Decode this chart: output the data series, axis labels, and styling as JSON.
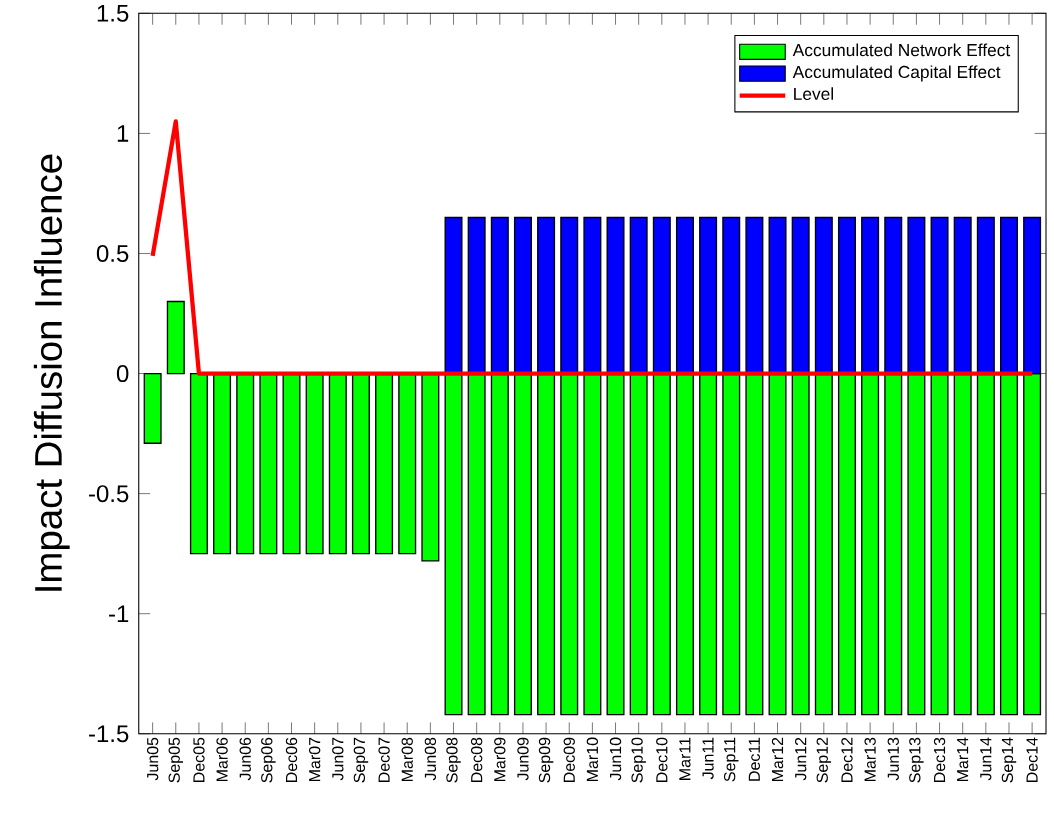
{
  "chart_data": {
    "type": "bar",
    "ylabel": "Impact Diffusion Influence",
    "categories": [
      "Jun05",
      "Sep05",
      "Dec05",
      "Mar06",
      "Jun06",
      "Sep06",
      "Dec06",
      "Mar07",
      "Jun07",
      "Sep07",
      "Dec07",
      "Mar08",
      "Jun08",
      "Sep08",
      "Dec08",
      "Mar09",
      "Jun09",
      "Sep09",
      "Dec09",
      "Mar10",
      "Jun10",
      "Sep10",
      "Dec10",
      "Mar11",
      "Jun11",
      "Sep11",
      "Dec11",
      "Mar12",
      "Jun12",
      "Sep12",
      "Dec12",
      "Mar13",
      "Jun13",
      "Sep13",
      "Dec13",
      "Mar14",
      "Jun14",
      "Sep14",
      "Dec14"
    ],
    "series": [
      {
        "name": "Accumulated Network Effect",
        "color": "#00ff00",
        "values": [
          -0.29,
          0.3,
          -0.75,
          -0.75,
          -0.75,
          -0.75,
          -0.75,
          -0.75,
          -0.75,
          -0.75,
          -0.75,
          -0.75,
          -0.78,
          -1.42,
          -1.42,
          -1.42,
          -1.42,
          -1.42,
          -1.42,
          -1.42,
          -1.42,
          -1.42,
          -1.42,
          -1.42,
          -1.42,
          -1.42,
          -1.42,
          -1.42,
          -1.42,
          -1.42,
          -1.42,
          -1.42,
          -1.42,
          -1.42,
          -1.42,
          -1.42,
          -1.42,
          -1.42,
          -1.42
        ]
      },
      {
        "name": "Accumulated Capital Effect",
        "color": "#0000ff",
        "values": [
          0,
          0,
          0,
          0,
          0,
          0,
          0,
          0,
          0,
          0,
          0,
          0,
          0,
          0.65,
          0.65,
          0.65,
          0.65,
          0.65,
          0.65,
          0.65,
          0.65,
          0.65,
          0.65,
          0.65,
          0.65,
          0.65,
          0.65,
          0.65,
          0.65,
          0.65,
          0.65,
          0.65,
          0.65,
          0.65,
          0.65,
          0.65,
          0.65,
          0.65,
          0.65
        ]
      },
      {
        "name": "Level",
        "type": "line",
        "color": "#ff0000",
        "values": [
          0.49,
          1.05,
          0,
          0,
          0,
          0,
          0,
          0,
          0,
          0,
          0,
          0,
          0,
          0,
          0,
          0,
          0,
          0,
          0,
          0,
          0,
          0,
          0,
          0,
          0,
          0,
          0,
          0,
          0,
          0,
          0,
          0,
          0,
          0,
          0,
          0,
          0,
          0,
          0
        ]
      }
    ],
    "ylim": [
      -1.5,
      1.5
    ],
    "yticks": [
      -1.5,
      -1,
      -0.5,
      0,
      0.5,
      1,
      1.5
    ],
    "stacked": true,
    "legend": "top right",
    "grid": false
  }
}
